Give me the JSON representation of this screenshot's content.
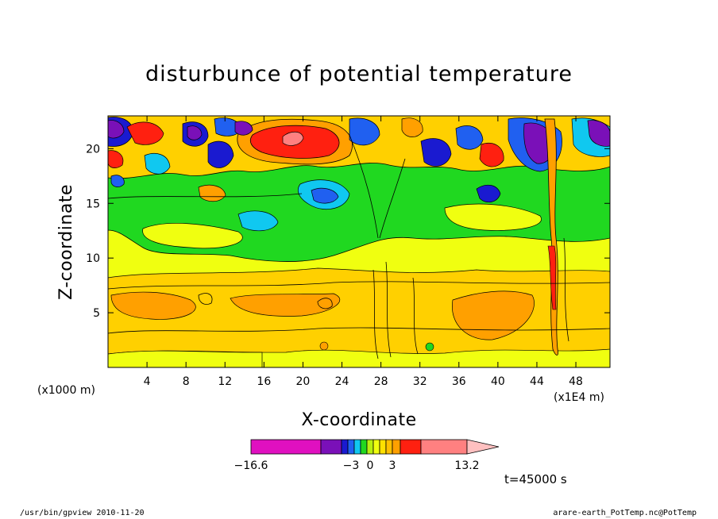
{
  "chart_data": {
    "type": "heatmap",
    "title": "disturbunce of potential temperature",
    "xlabel": "X-coordinate",
    "ylabel": "Z-coordinate",
    "x_unit": "(x1000 m)",
    "x_multiplier": "(x1E4 m)",
    "xlim": [
      0,
      51.5
    ],
    "ylim": [
      0,
      23
    ],
    "x_ticks": [
      "4",
      "8",
      "12",
      "16",
      "20",
      "24",
      "28",
      "32",
      "36",
      "40",
      "44",
      "48"
    ],
    "y_ticks": [
      "5",
      "10",
      "15",
      "20"
    ],
    "colorbar": {
      "min_label": "−16.6",
      "max_label": "13.2",
      "mid_labels": [
        "−3",
        "0",
        "3"
      ]
    },
    "time_label": "t=45000 s"
  },
  "colors": {
    "magenta": "#e010c0",
    "purple": "#7a10b8",
    "blue_dark": "#1a1ad0",
    "blue": "#2060f0",
    "cyan": "#10c8f0",
    "green": "#20d820",
    "yellow": "#f0ff10",
    "yellow_orange": "#ffd000",
    "orange": "#ffa000",
    "red": "#ff2010",
    "salmon": "#ff8080",
    "pink": "#ffc0c0"
  },
  "footer": {
    "left": "/usr/bin/gpview   2010-11-20",
    "right": "arare-earth_PotTemp.nc@PotTemp"
  }
}
